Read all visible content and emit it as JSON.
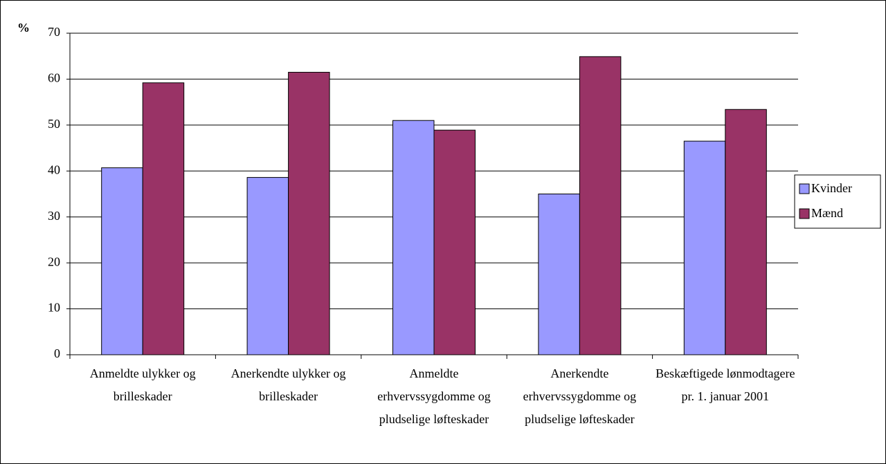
{
  "chart_data": {
    "type": "bar",
    "y_label": "%",
    "categories": [
      "Anmeldte ulykker og brilleskader",
      "Anerkendte ulykker og brilleskader",
      "Anmeldte erhvervssygdomme og pludselige løfteskader",
      "Anerkendte erhvervssygdomme og pludselige løfteskader",
      "Beskæftigede lønmodtagere pr. 1. januar 2001"
    ],
    "series": [
      {
        "name": "Kvinder",
        "color": "#9999ff",
        "values": [
          40.7,
          38.6,
          51,
          35,
          46.5
        ]
      },
      {
        "name": "Mænd",
        "color": "#993366",
        "values": [
          59.2,
          61.5,
          48.9,
          64.9,
          53.4
        ]
      }
    ],
    "ylim": [
      0,
      70
    ],
    "yticks": [
      0,
      10,
      20,
      30,
      40,
      50,
      60,
      70
    ],
    "grid": true,
    "legend": "right"
  }
}
